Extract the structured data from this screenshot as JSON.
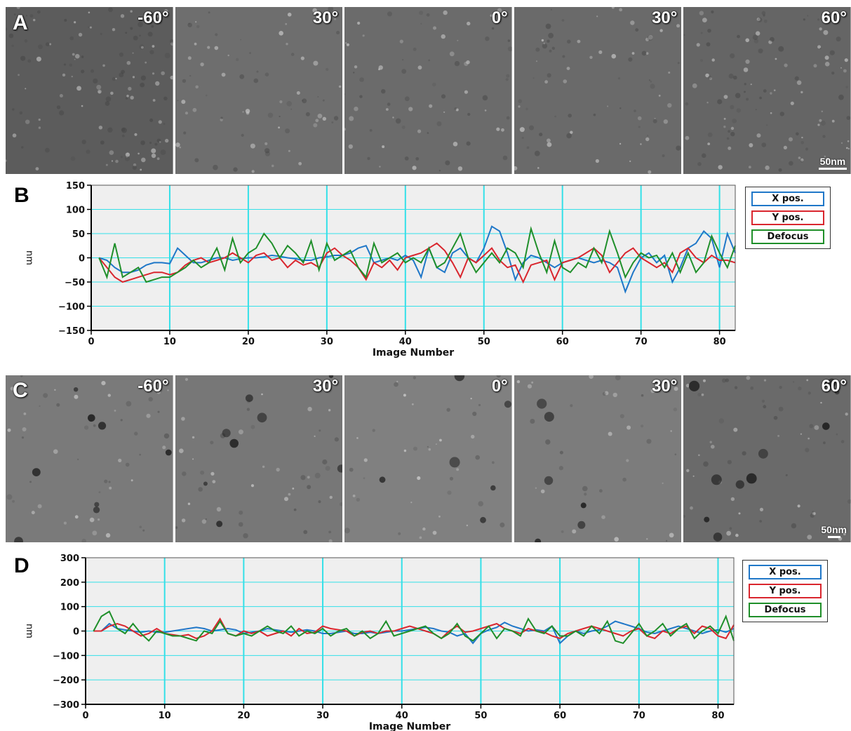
{
  "panels": {
    "a": {
      "letter": "A",
      "angles": [
        "-60°",
        "30°",
        "0°",
        "30°",
        "60°"
      ],
      "scale_label": "50nm"
    },
    "b": {
      "letter": "B"
    },
    "c": {
      "letter": "C",
      "angles": [
        "-60°",
        "30°",
        "0°",
        "30°",
        "60°"
      ],
      "scale_label": "50nm"
    },
    "d": {
      "letter": "D"
    }
  },
  "colors": {
    "x_pos": "#1f77c8",
    "y_pos": "#d9262e",
    "defocus": "#1f8f2a",
    "grid": "#33e0e8",
    "plot_bg": "#efefef"
  },
  "chart_data": [
    {
      "type": "line",
      "title": "",
      "xlabel": "Image Number",
      "ylabel": "nm",
      "xlim": [
        0,
        82
      ],
      "ylim": [
        -150,
        150
      ],
      "xticks": [
        0,
        10,
        20,
        30,
        40,
        50,
        60,
        70,
        80
      ],
      "yticks": [
        150,
        100,
        50,
        0,
        -50,
        -100,
        -150
      ],
      "grid": true,
      "legend": "right",
      "x": [
        1,
        2,
        3,
        4,
        5,
        6,
        7,
        8,
        9,
        10,
        11,
        12,
        13,
        14,
        15,
        16,
        17,
        18,
        19,
        20,
        21,
        22,
        23,
        24,
        25,
        26,
        27,
        28,
        29,
        30,
        31,
        32,
        33,
        34,
        35,
        36,
        37,
        38,
        39,
        40,
        41,
        42,
        43,
        44,
        45,
        46,
        47,
        48,
        49,
        50,
        51,
        52,
        53,
        54,
        55,
        56,
        57,
        58,
        59,
        60,
        61,
        62,
        63,
        64,
        65,
        66,
        67,
        68,
        69,
        70,
        71,
        72,
        73,
        74,
        75,
        76,
        77,
        78,
        79,
        80,
        81,
        82
      ],
      "series": [
        {
          "name": "X pos.",
          "color_key": "x_pos",
          "values": [
            0,
            -5,
            -20,
            -30,
            -30,
            -25,
            -15,
            -10,
            -10,
            -12,
            20,
            5,
            -10,
            -10,
            -5,
            0,
            0,
            -5,
            -2,
            0,
            0,
            2,
            5,
            3,
            0,
            -2,
            -5,
            -5,
            0,
            2,
            5,
            5,
            10,
            20,
            25,
            -10,
            -5,
            0,
            -5,
            5,
            -5,
            -40,
            20,
            -20,
            -30,
            10,
            20,
            0,
            -10,
            20,
            65,
            55,
            10,
            -45,
            -10,
            5,
            0,
            -10,
            -20,
            -10,
            -5,
            0,
            -5,
            -10,
            -5,
            -10,
            -20,
            -70,
            -30,
            0,
            10,
            -10,
            5,
            -50,
            -20,
            20,
            30,
            55,
            40,
            -20,
            50,
            10
          ]
        },
        {
          "name": "Y pos.",
          "color_key": "y_pos",
          "values": [
            0,
            -20,
            -40,
            -50,
            -45,
            -40,
            -35,
            -30,
            -30,
            -35,
            -30,
            -15,
            -5,
            0,
            -10,
            -5,
            0,
            10,
            0,
            -10,
            5,
            10,
            -5,
            0,
            -20,
            -5,
            -15,
            -10,
            -20,
            10,
            20,
            5,
            -5,
            -20,
            -45,
            -10,
            -20,
            -5,
            -25,
            0,
            5,
            10,
            20,
            30,
            15,
            -10,
            -40,
            0,
            -10,
            5,
            20,
            -5,
            -20,
            -15,
            -50,
            -15,
            -10,
            -5,
            -45,
            -10,
            -5,
            0,
            10,
            20,
            5,
            -30,
            -10,
            10,
            20,
            0,
            -10,
            -20,
            -10,
            -30,
            10,
            20,
            0,
            -10,
            5,
            -5,
            -5,
            -10
          ]
        },
        {
          "name": "Defocus",
          "color_key": "defocus",
          "values": [
            0,
            -40,
            30,
            -40,
            -30,
            -20,
            -50,
            -45,
            -40,
            -40,
            -30,
            -20,
            -5,
            -20,
            -10,
            20,
            -25,
            40,
            -10,
            10,
            20,
            50,
            30,
            0,
            25,
            10,
            -10,
            35,
            -25,
            30,
            -5,
            5,
            15,
            -20,
            -40,
            30,
            -10,
            0,
            10,
            -10,
            0,
            -10,
            20,
            -20,
            -10,
            20,
            50,
            0,
            -30,
            -10,
            10,
            -10,
            20,
            10,
            -20,
            60,
            10,
            -30,
            35,
            -20,
            -30,
            -10,
            -20,
            20,
            -10,
            55,
            10,
            -40,
            -10,
            10,
            0,
            5,
            -20,
            10,
            -30,
            10,
            -30,
            -10,
            45,
            10,
            -20,
            25
          ]
        }
      ]
    },
    {
      "type": "line",
      "title": "",
      "xlabel": "Image Number",
      "ylabel": "nm",
      "xlim": [
        0,
        82
      ],
      "ylim": [
        -300,
        300
      ],
      "xticks": [
        0,
        10,
        20,
        30,
        40,
        50,
        60,
        70,
        80
      ],
      "yticks": [
        300,
        200,
        100,
        0,
        -100,
        -200,
        -300
      ],
      "grid": true,
      "legend": "right",
      "x": [
        1,
        2,
        3,
        4,
        5,
        6,
        7,
        8,
        9,
        10,
        11,
        12,
        13,
        14,
        15,
        16,
        17,
        18,
        19,
        20,
        21,
        22,
        23,
        24,
        25,
        26,
        27,
        28,
        29,
        30,
        31,
        32,
        33,
        34,
        35,
        36,
        37,
        38,
        39,
        40,
        41,
        42,
        43,
        44,
        45,
        46,
        47,
        48,
        49,
        50,
        51,
        52,
        53,
        54,
        55,
        56,
        57,
        58,
        59,
        60,
        61,
        62,
        63,
        64,
        65,
        66,
        67,
        68,
        69,
        70,
        71,
        72,
        73,
        74,
        75,
        76,
        77,
        78,
        79,
        80,
        81,
        82
      ],
      "series": [
        {
          "name": "X pos.",
          "color_key": "x_pos",
          "values": [
            0,
            0,
            30,
            10,
            5,
            0,
            -5,
            0,
            -5,
            -5,
            0,
            5,
            10,
            15,
            10,
            0,
            5,
            10,
            5,
            -10,
            -5,
            0,
            10,
            5,
            0,
            -5,
            0,
            5,
            0,
            -10,
            -10,
            -5,
            0,
            -10,
            -10,
            -5,
            -10,
            -5,
            0,
            0,
            5,
            10,
            15,
            10,
            0,
            -5,
            -20,
            -10,
            -50,
            -10,
            5,
            15,
            35,
            20,
            10,
            0,
            5,
            0,
            20,
            -50,
            -20,
            0,
            -10,
            0,
            5,
            20,
            40,
            30,
            20,
            10,
            -5,
            -10,
            0,
            10,
            20,
            10,
            0,
            -10,
            0,
            5,
            -5,
            10
          ]
        },
        {
          "name": "Y pos.",
          "color_key": "y_pos",
          "values": [
            0,
            0,
            20,
            30,
            20,
            0,
            -20,
            -10,
            10,
            -10,
            -15,
            -20,
            -15,
            -30,
            -20,
            0,
            50,
            -10,
            -20,
            0,
            -10,
            0,
            -20,
            -10,
            0,
            -20,
            10,
            -10,
            -5,
            20,
            10,
            5,
            0,
            -20,
            -5,
            0,
            -10,
            0,
            0,
            10,
            20,
            10,
            0,
            -10,
            -30,
            0,
            20,
            -5,
            0,
            10,
            20,
            30,
            10,
            0,
            -10,
            10,
            0,
            -5,
            -20,
            -30,
            -10,
            0,
            10,
            20,
            10,
            0,
            -10,
            -20,
            0,
            10,
            -20,
            -30,
            0,
            -10,
            10,
            20,
            -10,
            20,
            10,
            -20,
            -30,
            25
          ]
        },
        {
          "name": "Defocus",
          "color_key": "defocus",
          "values": [
            0,
            60,
            80,
            10,
            -10,
            30,
            -10,
            -40,
            0,
            -10,
            -20,
            -20,
            -30,
            -40,
            0,
            -10,
            40,
            -10,
            -20,
            -10,
            -20,
            0,
            20,
            0,
            -10,
            20,
            -20,
            0,
            -10,
            10,
            -20,
            0,
            10,
            -20,
            0,
            -30,
            -10,
            40,
            -20,
            -10,
            0,
            10,
            20,
            -10,
            -30,
            -10,
            30,
            -20,
            -40,
            -10,
            20,
            -30,
            10,
            0,
            -20,
            50,
            0,
            -10,
            20,
            -20,
            -20,
            0,
            -20,
            20,
            -10,
            40,
            -40,
            -50,
            -10,
            30,
            -20,
            0,
            30,
            -20,
            10,
            30,
            -30,
            0,
            20,
            -10,
            60,
            -40
          ]
        }
      ]
    }
  ]
}
